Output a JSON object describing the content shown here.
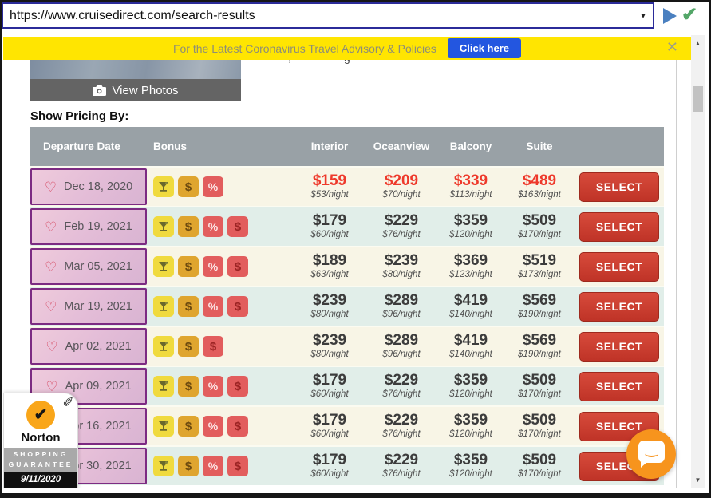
{
  "browser": {
    "url": "https://www.cruisedirect.com/search-results",
    "caret": "▾",
    "check": "✔"
  },
  "banner": {
    "text": "For the Latest Coronavirus Travel Advisory & Policies",
    "button_label": "Click here",
    "close": "✕"
  },
  "clipped_fragments": {
    "left": ",",
    "right": "g"
  },
  "photo": {
    "view_photos_label": "View Photos"
  },
  "pricing": {
    "heading": "Show Pricing By:",
    "columns": [
      "Departure Date",
      "Bonus",
      "Interior",
      "Oceanview",
      "Balcony",
      "Suite"
    ],
    "select_label": "SELECT",
    "heart": "♡",
    "rows": [
      {
        "date": "Dec 18, 2020",
        "bonuses": [
          "drink",
          "dollar-gold",
          "percent"
        ],
        "highlight": true,
        "prices": [
          {
            "amount": "$159",
            "night": "$53/night"
          },
          {
            "amount": "$209",
            "night": "$70/night"
          },
          {
            "amount": "$339",
            "night": "$113/night"
          },
          {
            "amount": "$489",
            "night": "$163/night"
          }
        ]
      },
      {
        "date": "Feb 19, 2021",
        "bonuses": [
          "drink",
          "dollar-gold",
          "percent",
          "dollar-red"
        ],
        "highlight": false,
        "prices": [
          {
            "amount": "$179",
            "night": "$60/night"
          },
          {
            "amount": "$229",
            "night": "$76/night"
          },
          {
            "amount": "$359",
            "night": "$120/night"
          },
          {
            "amount": "$509",
            "night": "$170/night"
          }
        ]
      },
      {
        "date": "Mar 05, 2021",
        "bonuses": [
          "drink",
          "dollar-gold",
          "percent",
          "dollar-red"
        ],
        "highlight": false,
        "prices": [
          {
            "amount": "$189",
            "night": "$63/night"
          },
          {
            "amount": "$239",
            "night": "$80/night"
          },
          {
            "amount": "$369",
            "night": "$123/night"
          },
          {
            "amount": "$519",
            "night": "$173/night"
          }
        ]
      },
      {
        "date": "Mar 19, 2021",
        "bonuses": [
          "drink",
          "dollar-gold",
          "percent",
          "dollar-red"
        ],
        "highlight": false,
        "prices": [
          {
            "amount": "$239",
            "night": "$80/night"
          },
          {
            "amount": "$289",
            "night": "$96/night"
          },
          {
            "amount": "$419",
            "night": "$140/night"
          },
          {
            "amount": "$569",
            "night": "$190/night"
          }
        ]
      },
      {
        "date": "Apr 02, 2021",
        "bonuses": [
          "drink",
          "dollar-gold",
          "dollar-red"
        ],
        "highlight": false,
        "prices": [
          {
            "amount": "$239",
            "night": "$80/night"
          },
          {
            "amount": "$289",
            "night": "$96/night"
          },
          {
            "amount": "$419",
            "night": "$140/night"
          },
          {
            "amount": "$569",
            "night": "$190/night"
          }
        ]
      },
      {
        "date": "Apr 09, 2021",
        "bonuses": [
          "drink",
          "dollar-gold",
          "percent",
          "dollar-red"
        ],
        "highlight": false,
        "prices": [
          {
            "amount": "$179",
            "night": "$60/night"
          },
          {
            "amount": "$229",
            "night": "$76/night"
          },
          {
            "amount": "$359",
            "night": "$120/night"
          },
          {
            "amount": "$509",
            "night": "$170/night"
          }
        ]
      },
      {
        "date": "Apr 16, 2021",
        "bonuses": [
          "drink",
          "dollar-gold",
          "percent",
          "dollar-red"
        ],
        "highlight": false,
        "prices": [
          {
            "amount": "$179",
            "night": "$60/night"
          },
          {
            "amount": "$229",
            "night": "$76/night"
          },
          {
            "amount": "$359",
            "night": "$120/night"
          },
          {
            "amount": "$509",
            "night": "$170/night"
          }
        ]
      },
      {
        "date": "Apr 30, 2021",
        "bonuses": [
          "drink",
          "dollar-gold",
          "percent",
          "dollar-red"
        ],
        "highlight": false,
        "prices": [
          {
            "amount": "$179",
            "night": "$60/night"
          },
          {
            "amount": "$229",
            "night": "$76/night"
          },
          {
            "amount": "$359",
            "night": "$120/night"
          },
          {
            "amount": "$509",
            "night": "$170/night"
          }
        ]
      }
    ],
    "bonus_glyphs": {
      "dollar-gold": "$",
      "percent": "%",
      "dollar-red": "$"
    }
  },
  "norton": {
    "check": "✔",
    "pencil": "✎",
    "name": "Norton",
    "line1": "SHOPPING",
    "line2": "GUARANTEE",
    "date": "9/11/2020"
  },
  "scrollbar": {
    "up": "▲",
    "down": "▼"
  },
  "colors": {
    "banner_yellow": "#ffe501",
    "banner_button_blue": "#2356e0",
    "table_header_gray": "#99a1a6",
    "row_cream": "#f8f5e6",
    "row_teal": "#e1eee9",
    "date_border_purple": "#7c2b82",
    "price_red": "#ee392b",
    "select_red": "#c9372c",
    "chat_orange": "#f7941d",
    "norton_orange": "#f9a61a",
    "icon_yellow": "#f0da3e",
    "icon_gold": "#dfa52f",
    "icon_red": "#e25d5d"
  }
}
